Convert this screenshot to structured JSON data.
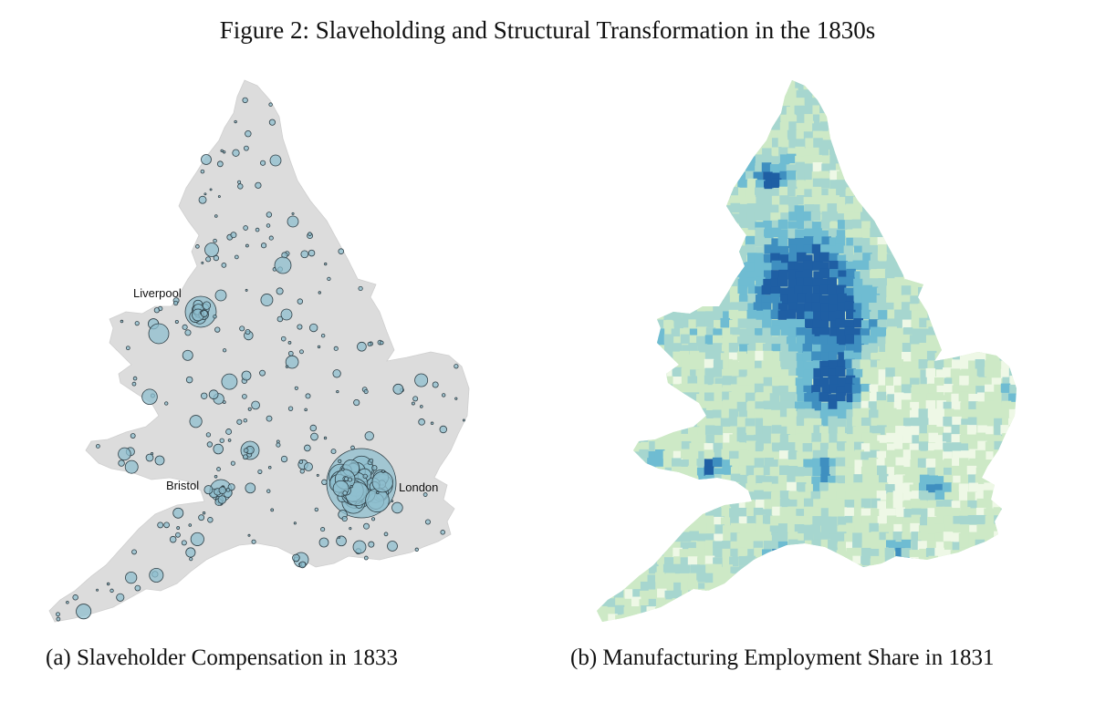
{
  "figure": {
    "title": "Figure 2: Slaveholding and Structural Transformation in the 1830s"
  },
  "panel_a": {
    "caption": "(a) Slaveholder Compensation in 1833",
    "map_fill": "#dcdcdc",
    "bubble_fill": "#8fbfcf",
    "bubble_stroke": "#2f3f46",
    "labels": {
      "liverpool": "Liverpool",
      "bristol": "Bristol",
      "london": "London"
    }
  },
  "panel_b": {
    "caption": "(b) Manufacturing Employment Share in 1831",
    "palette": [
      "#eef8e6",
      "#cde9c6",
      "#a6d6cf",
      "#6fbcd2",
      "#3f8fc0",
      "#1f5fa4"
    ]
  }
}
